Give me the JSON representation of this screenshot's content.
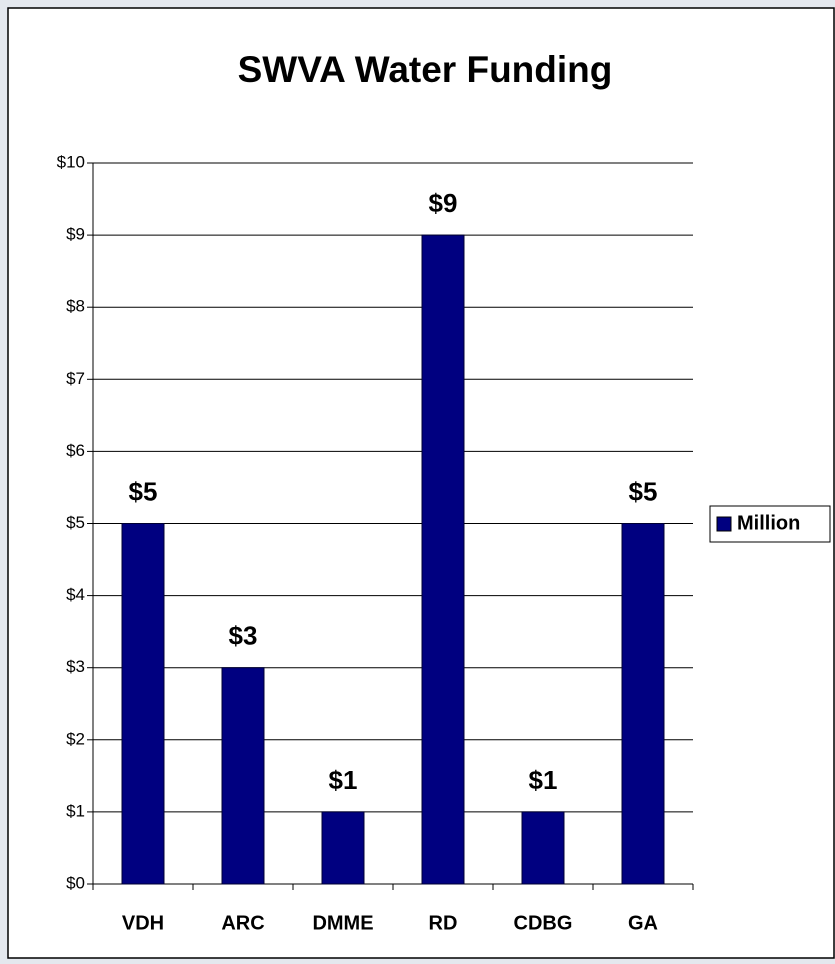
{
  "chart_data": {
    "type": "bar",
    "title": "SWVA Water Funding",
    "categories": [
      "VDH",
      "ARC",
      "DMME",
      "RD",
      "CDBG",
      "GA"
    ],
    "series": [
      {
        "name": "Million",
        "color": "#000080",
        "values": [
          5,
          3,
          1,
          9,
          1,
          5
        ],
        "value_labels": [
          "$5",
          "$3",
          "$1",
          "$9",
          "$1",
          "$5"
        ]
      }
    ],
    "ylim": [
      0,
      10
    ],
    "yticks": [
      {
        "value": 0,
        "label": "$0"
      },
      {
        "value": 1,
        "label": "$1"
      },
      {
        "value": 2,
        "label": "$2"
      },
      {
        "value": 3,
        "label": "$3"
      },
      {
        "value": 4,
        "label": "$4"
      },
      {
        "value": 5,
        "label": "$5"
      },
      {
        "value": 6,
        "label": "$6"
      },
      {
        "value": 7,
        "label": "$7"
      },
      {
        "value": 8,
        "label": "$8"
      },
      {
        "value": 9,
        "label": "$9"
      },
      {
        "value": 10,
        "label": "$10"
      }
    ],
    "grid": true,
    "legend": "right"
  }
}
